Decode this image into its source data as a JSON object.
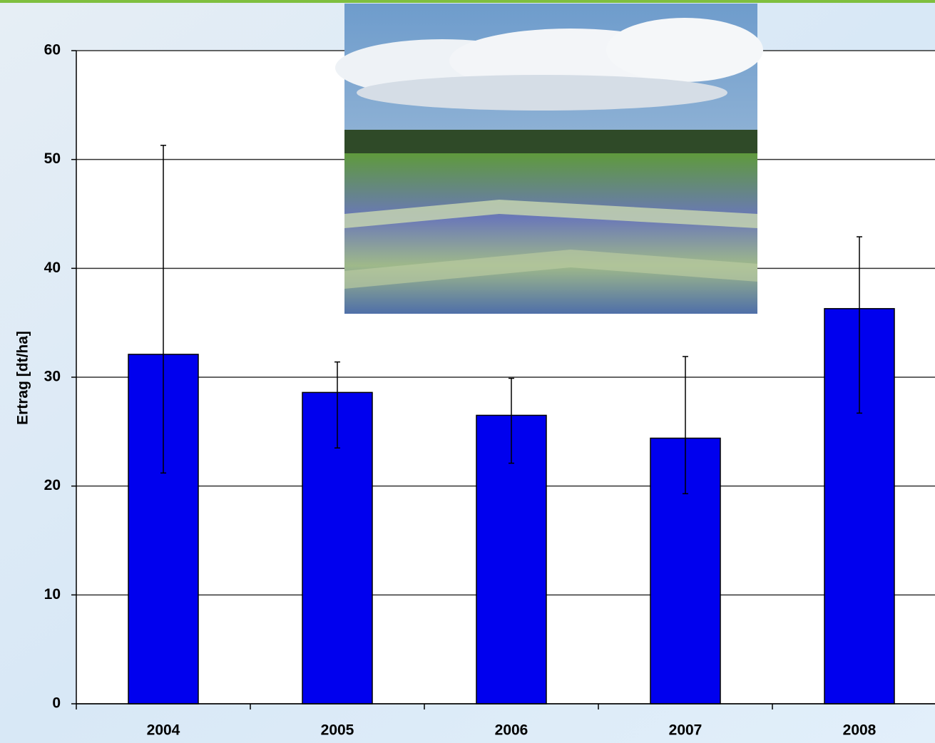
{
  "chart_data": {
    "type": "bar",
    "y_label": "Ertrag [dt/ha]",
    "categories": [
      "2004",
      "2005",
      "2006",
      "2007",
      "2008"
    ],
    "values": [
      32.1,
      28.6,
      26.5,
      24.4,
      36.3
    ],
    "error_plus": [
      19.2,
      2.8,
      3.4,
      7.5,
      6.6
    ],
    "error_minus": [
      10.9,
      5.1,
      4.4,
      5.1,
      9.6
    ],
    "color": "#0000ee",
    "ylim": [
      0,
      60
    ],
    "yticks": [
      0,
      10,
      20,
      30,
      40,
      50,
      60
    ],
    "grid": true
  }
}
